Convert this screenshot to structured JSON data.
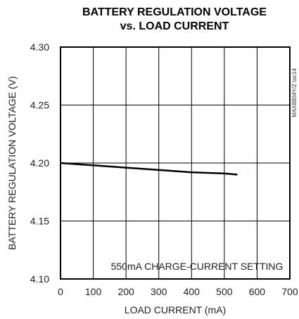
{
  "chart_data": {
    "type": "line",
    "title_line1": "BATTERY REGULATION VOLTAGE",
    "title_line2": "vs. LOAD CURRENT",
    "xlabel": "LOAD CURRENT (mA)",
    "ylabel": "BATTERY REGULATION VOLTAGE (V)",
    "xlim": [
      0,
      700
    ],
    "ylim": [
      4.1,
      4.3
    ],
    "xticks": [
      0,
      100,
      200,
      300,
      400,
      500,
      600,
      700
    ],
    "xtick_labels": [
      "0",
      "100",
      "200",
      "300",
      "400",
      "500",
      "600",
      "700"
    ],
    "yticks": [
      4.1,
      4.15,
      4.2,
      4.25,
      4.3
    ],
    "ytick_labels": [
      "4.10",
      "4.15",
      "4.20",
      "4.25",
      "4.30"
    ],
    "grid": true,
    "annotation": "550mA CHARGE-CURRENT SETTING",
    "side_id": "MAX8804Y/Z toc14",
    "series": [
      {
        "x": [
          0,
          100,
          200,
          250,
          300,
          400,
          500,
          540
        ],
        "y": [
          4.2,
          4.198,
          4.196,
          4.195,
          4.194,
          4.192,
          4.191,
          4.19
        ]
      }
    ]
  }
}
